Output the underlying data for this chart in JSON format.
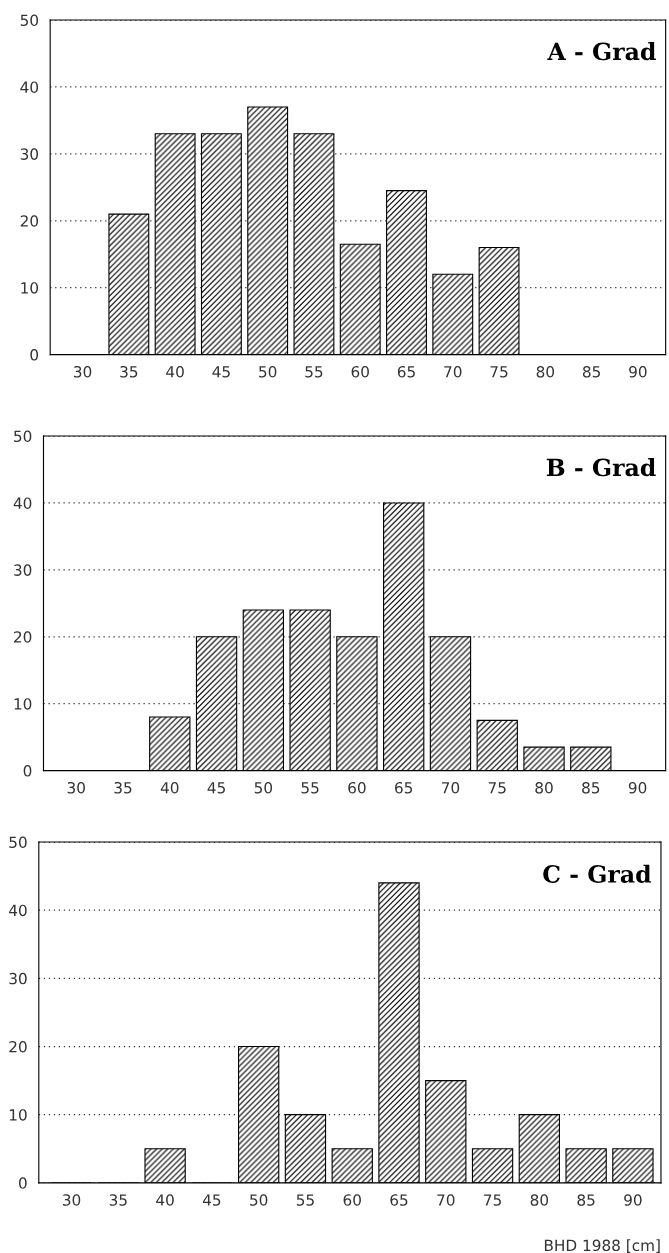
{
  "chart_data": [
    {
      "type": "bar",
      "title": "A - Grad",
      "categories": [
        "30",
        "35",
        "40",
        "45",
        "50",
        "55",
        "60",
        "65",
        "70",
        "75",
        "80",
        "85",
        "90"
      ],
      "values": [
        0,
        21,
        33,
        33,
        37,
        33,
        16.5,
        24.5,
        12,
        16,
        0,
        0,
        0
      ],
      "color": "#000000",
      "ylim": [
        0,
        50
      ],
      "yticks": [
        0,
        10,
        20,
        30,
        40,
        50
      ],
      "grid": "y"
    },
    {
      "type": "bar",
      "title": "B - Grad",
      "categories": [
        "30",
        "35",
        "40",
        "45",
        "50",
        "55",
        "60",
        "65",
        "70",
        "75",
        "80",
        "85",
        "90"
      ],
      "values": [
        0,
        0,
        8,
        20,
        24,
        24,
        20,
        40,
        20,
        7.5,
        3.5,
        3.5,
        0
      ],
      "color": "#000000",
      "ylim": [
        0,
        50
      ],
      "yticks": [
        0,
        10,
        20,
        30,
        40,
        50
      ],
      "grid": "y"
    },
    {
      "type": "bar",
      "title": "C - Grad",
      "xlabel": "BHD 1988 [cm]",
      "categories": [
        "30",
        "35",
        "40",
        "45",
        "50",
        "55",
        "60",
        "65",
        "70",
        "75",
        "80",
        "85",
        "90"
      ],
      "values": [
        0,
        0,
        5,
        0,
        20,
        10,
        5,
        44,
        15,
        5,
        10,
        5,
        5
      ],
      "color": "#000000",
      "ylim": [
        0,
        50
      ],
      "yticks": [
        0,
        10,
        20,
        30,
        40,
        50
      ],
      "grid": "y"
    }
  ]
}
